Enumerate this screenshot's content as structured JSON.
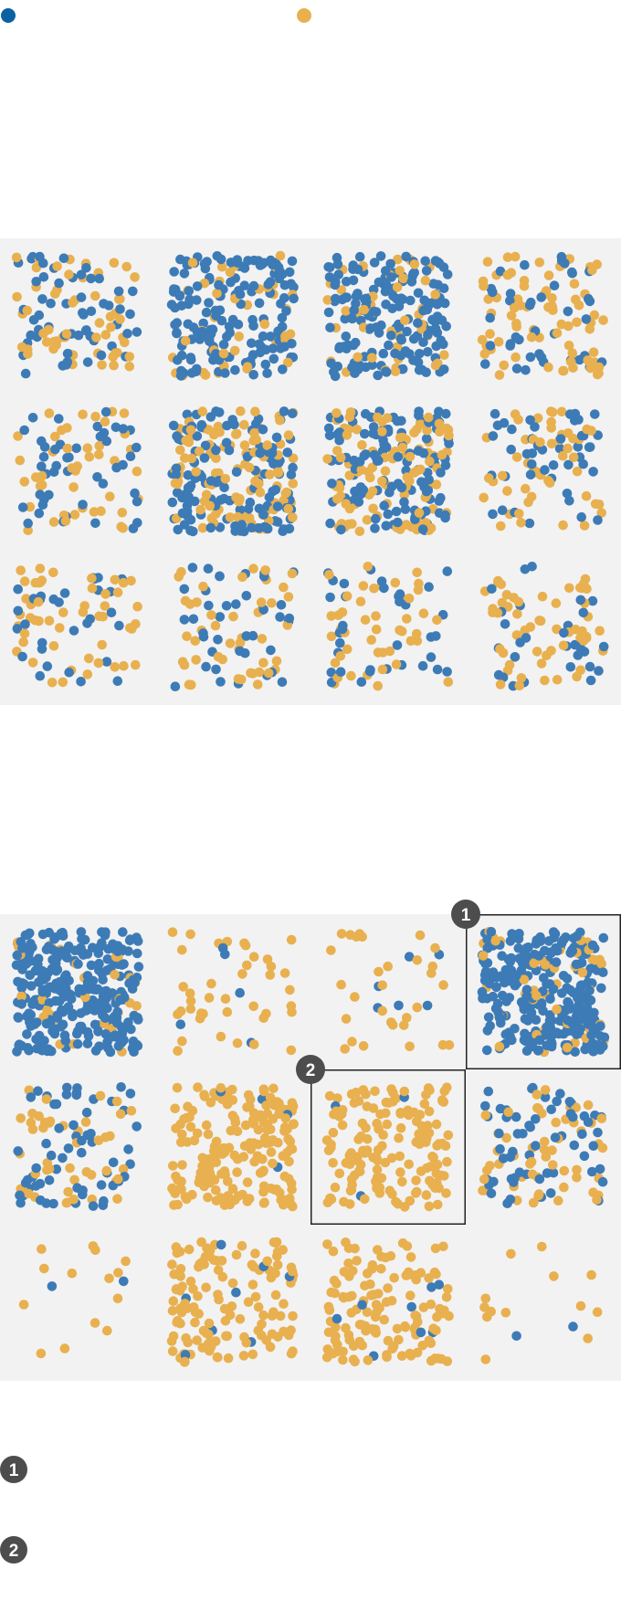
{
  "chart_data": {
    "type": "scatter",
    "title": "",
    "colors": {
      "blue": "#3d7bb6",
      "yellow": "#e8b04f",
      "panel_bg": "#f2f2f2",
      "frame": "#222222",
      "marker": "#4d4d4d"
    },
    "legend": {
      "placement": "top",
      "items": [
        {
          "color": "#0b62a3",
          "label": ""
        },
        {
          "color": "#e8b04f",
          "label": ""
        }
      ]
    },
    "grids": [
      {
        "name": "grid-1",
        "rows": 3,
        "cols": 4,
        "cells": [
          {
            "blue": 60,
            "yellow": 55
          },
          {
            "blue": 160,
            "yellow": 40
          },
          {
            "blue": 170,
            "yellow": 45
          },
          {
            "blue": 40,
            "yellow": 75
          },
          {
            "blue": 45,
            "yellow": 45
          },
          {
            "blue": 130,
            "yellow": 110
          },
          {
            "blue": 120,
            "yellow": 100
          },
          {
            "blue": 45,
            "yellow": 50
          },
          {
            "blue": 30,
            "yellow": 50
          },
          {
            "blue": 40,
            "yellow": 45
          },
          {
            "blue": 35,
            "yellow": 45
          },
          {
            "blue": 30,
            "yellow": 55
          }
        ]
      },
      {
        "name": "grid-2",
        "rows": 3,
        "cols": 4,
        "cells": [
          {
            "blue": 290,
            "yellow": 30
          },
          {
            "blue": 5,
            "yellow": 40
          },
          {
            "blue": 6,
            "yellow": 30
          },
          {
            "blue": 280,
            "yellow": 50
          },
          {
            "blue": 60,
            "yellow": 45
          },
          {
            "blue": 4,
            "yellow": 190
          },
          {
            "blue": 3,
            "yellow": 150
          },
          {
            "blue": 60,
            "yellow": 55
          },
          {
            "blue": 2,
            "yellow": 14
          },
          {
            "blue": 8,
            "yellow": 130
          },
          {
            "blue": 8,
            "yellow": 130
          },
          {
            "blue": 2,
            "yellow": 13
          }
        ]
      }
    ],
    "highlights": [
      {
        "label": "1",
        "grid": 1,
        "cell": 3
      },
      {
        "label": "2",
        "grid": 1,
        "cell": 6
      }
    ],
    "footnotes": [
      {
        "label": "1",
        "text": ""
      },
      {
        "label": "2",
        "text": ""
      }
    ]
  }
}
